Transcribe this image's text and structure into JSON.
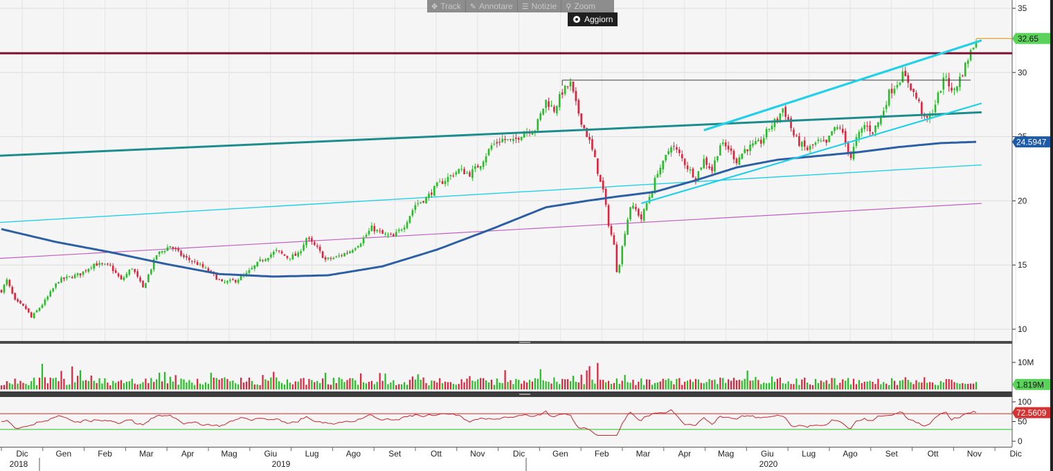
{
  "toolbar": {
    "track": "Track",
    "annotate": "Annotare",
    "news": "Notizie",
    "zoom": "Zoom",
    "update": "Aggiorn",
    "icons": [
      "move-icon",
      "pencil-icon",
      "news-icon",
      "magnifier-icon",
      "radio-icon"
    ]
  },
  "colors": {
    "up": "#22c022",
    "down": "#e0223a",
    "ma": "#2d5fa3",
    "trend_dark": "#1e8c8c",
    "trend_cyan": "#22d0e8",
    "resistance": "#7a1030",
    "rsi": "#c8242c",
    "magenta": "#c060c0",
    "price_badge": "#5bd35b",
    "ma_badge": "#1d5aa8",
    "rsi_badge": "#d33333"
  },
  "chart_data": [
    {
      "type": "candlestick",
      "panel": "price",
      "ylim": [
        8.5,
        35.5
      ],
      "yticks": [
        10,
        15,
        20,
        25,
        30,
        35
      ],
      "last_price": "32.65",
      "last_price_value": 32.65,
      "ma_value": "24.5947",
      "ma_value_num": 24.5947,
      "months": [
        "Dic",
        "Gen",
        "Feb",
        "Mar",
        "Apr",
        "Mag",
        "Giu",
        "Lug",
        "Ago",
        "Set",
        "Ott",
        "Nov",
        "Dic",
        "Gen",
        "Feb",
        "Mar",
        "Apr",
        "Mag",
        "Giu",
        "Lug",
        "Ago",
        "Set",
        "Ott",
        "Nov",
        "Dic"
      ],
      "years": [
        "2018",
        "2019",
        "2020"
      ],
      "anchors": [
        [
          0,
          13.0
        ],
        [
          2,
          13.8
        ],
        [
          5,
          12.2
        ],
        [
          9,
          11.6
        ],
        [
          11,
          10.9
        ],
        [
          16,
          12.2
        ],
        [
          21,
          13.8
        ],
        [
          29,
          14.3
        ],
        [
          34,
          15.1
        ],
        [
          40,
          14.9
        ],
        [
          44,
          13.8
        ],
        [
          48,
          14.8
        ],
        [
          52,
          13.2
        ],
        [
          57,
          15.8
        ],
        [
          62,
          16.5
        ],
        [
          67,
          15.6
        ],
        [
          72,
          15.1
        ],
        [
          77,
          14.4
        ],
        [
          81,
          13.6
        ],
        [
          86,
          13.8
        ],
        [
          90,
          14.3
        ],
        [
          95,
          15.3
        ],
        [
          101,
          16.1
        ],
        [
          105,
          15.6
        ],
        [
          109,
          15.8
        ],
        [
          112,
          17.1
        ],
        [
          116,
          16.3
        ],
        [
          119,
          15.4
        ],
        [
          123,
          15.6
        ],
        [
          128,
          16.1
        ],
        [
          132,
          16.8
        ],
        [
          136,
          17.9
        ],
        [
          140,
          17.4
        ],
        [
          144,
          17.2
        ],
        [
          148,
          18.1
        ],
        [
          152,
          19.7
        ],
        [
          156,
          20.2
        ],
        [
          160,
          21.2
        ],
        [
          164,
          21.8
        ],
        [
          168,
          22.4
        ],
        [
          172,
          22.1
        ],
        [
          176,
          22.9
        ],
        [
          180,
          24.3
        ],
        [
          184,
          24.8
        ],
        [
          188,
          24.6
        ],
        [
          192,
          25.4
        ],
        [
          196,
          25.6
        ],
        [
          200,
          27.8
        ],
        [
          203,
          27.1
        ],
        [
          206,
          28.5
        ],
        [
          209,
          29.1
        ],
        [
          211,
          27.5
        ],
        [
          213,
          26.2
        ],
        [
          216,
          24.6
        ],
        [
          218,
          23.2
        ],
        [
          220,
          21.4
        ],
        [
          221,
          20.8
        ],
        [
          223,
          18.2
        ],
        [
          225,
          16.5
        ],
        [
          226,
          14.6
        ],
        [
          227,
          15.2
        ],
        [
          229,
          17.6
        ],
        [
          231,
          19.6
        ],
        [
          233,
          19.3
        ],
        [
          235,
          18.6
        ],
        [
          237,
          19.8
        ],
        [
          239,
          20.9
        ],
        [
          241,
          22.3
        ],
        [
          243,
          22.9
        ],
        [
          246,
          24.4
        ],
        [
          249,
          23.6
        ],
        [
          252,
          22.6
        ],
        [
          255,
          21.8
        ],
        [
          258,
          23.2
        ],
        [
          261,
          22.4
        ],
        [
          264,
          24.4
        ],
        [
          267,
          24.1
        ],
        [
          270,
          23.1
        ],
        [
          273,
          24.0
        ],
        [
          276,
          24.3
        ],
        [
          279,
          24.6
        ],
        [
          282,
          25.7
        ],
        [
          285,
          26.4
        ],
        [
          287,
          27.2
        ],
        [
          289,
          26.3
        ],
        [
          291,
          25.1
        ],
        [
          293,
          24.5
        ],
        [
          296,
          24.0
        ],
        [
          300,
          24.6
        ],
        [
          303,
          24.4
        ],
        [
          305,
          25.4
        ],
        [
          308,
          25.8
        ],
        [
          310,
          24.5
        ],
        [
          312,
          23.4
        ],
        [
          314,
          24.8
        ],
        [
          317,
          25.9
        ],
        [
          320,
          25.4
        ],
        [
          323,
          26.5
        ],
        [
          326,
          28.4
        ],
        [
          329,
          29.2
        ],
        [
          331,
          29.8
        ],
        [
          333,
          29.3
        ],
        [
          335,
          28.4
        ],
        [
          337,
          27.6
        ],
        [
          339,
          26.3
        ],
        [
          341,
          26.5
        ],
        [
          343,
          27.6
        ],
        [
          345,
          28.8
        ],
        [
          347,
          29.8
        ],
        [
          349,
          28.4
        ],
        [
          351,
          29.1
        ],
        [
          353,
          30.0
        ],
        [
          355,
          31.1
        ],
        [
          357,
          32.1
        ],
        [
          358,
          32.65
        ]
      ],
      "ma_anchors": [
        [
          0,
          17.8
        ],
        [
          20,
          16.8
        ],
        [
          40,
          16.0
        ],
        [
          60,
          15.1
        ],
        [
          80,
          14.3
        ],
        [
          100,
          14.1
        ],
        [
          120,
          14.2
        ],
        [
          140,
          14.9
        ],
        [
          160,
          16.2
        ],
        [
          180,
          17.8
        ],
        [
          200,
          19.5
        ],
        [
          215,
          20.0
        ],
        [
          225,
          20.3
        ],
        [
          240,
          20.7
        ],
        [
          255,
          21.6
        ],
        [
          270,
          22.6
        ],
        [
          285,
          23.2
        ],
        [
          300,
          23.5
        ],
        [
          315,
          23.8
        ],
        [
          330,
          24.2
        ],
        [
          345,
          24.5
        ],
        [
          358,
          24.5947
        ]
      ],
      "annotations": [
        {
          "type": "horizontal",
          "name": "resistance-line",
          "y": 31.5
        },
        {
          "type": "segment",
          "name": "feb-high-line",
          "x1": 206,
          "y1": 29.4,
          "x2": 356,
          "y2": 29.4
        },
        {
          "type": "segment",
          "name": "long-term-trendline",
          "x1": -2,
          "y1": 23.5,
          "x2": 360,
          "y2": 26.9
        },
        {
          "type": "segment",
          "name": "channel-upper",
          "x1": 258,
          "y1": 25.5,
          "x2": 360,
          "y2": 32.5
        },
        {
          "type": "segment",
          "name": "channel-lower",
          "x1": 235,
          "y1": 19.8,
          "x2": 360,
          "y2": 27.6
        },
        {
          "type": "segment",
          "name": "cyan-support-line",
          "x1": -2,
          "y1": 18.3,
          "x2": 360,
          "y2": 22.8
        },
        {
          "type": "segment",
          "name": "magenta-support-line",
          "x1": -2,
          "y1": 15.5,
          "x2": 360,
          "y2": 19.8
        }
      ]
    },
    {
      "type": "bar",
      "panel": "volume",
      "ylabel_tick": "10M",
      "last_value": "1.819M",
      "units": "M shares",
      "typical_range": [
        1.5,
        4.5
      ],
      "spikes": [
        [
          15,
          9.5
        ],
        [
          26,
          8.5
        ],
        [
          58,
          6.2
        ],
        [
          100,
          6.5
        ],
        [
          198,
          7.5
        ],
        [
          216,
          8.6
        ],
        [
          219,
          9.8
        ]
      ]
    },
    {
      "type": "line",
      "panel": "rsi",
      "yticks": [
        0,
        50,
        100
      ],
      "ylim": [
        -12,
        108
      ],
      "levels": [
        70,
        30
      ],
      "last_value": "72.5609",
      "last_value_num": 72.5609
    }
  ]
}
